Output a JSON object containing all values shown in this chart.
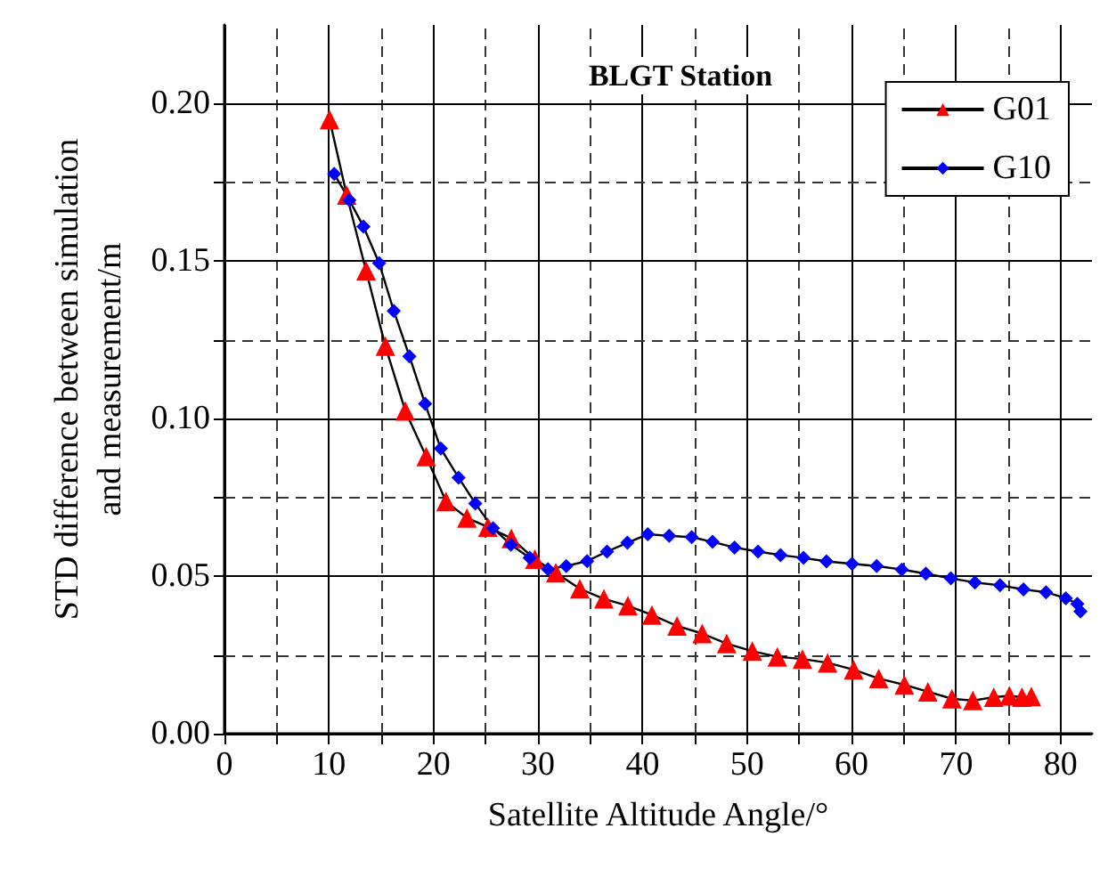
{
  "chart_data": {
    "type": "line",
    "title": "BLGT Station",
    "xlabel": "Satellite Altitude Angle/°",
    "ylabel": "STD difference between simulation\nand measurement/m",
    "xlim": [
      0,
      83
    ],
    "xticks": [
      0,
      {
        "value": 5,
        "label": null
      },
      10,
      {
        "value": 15,
        "label": null
      },
      20,
      {
        "value": 25,
        "label": null
      },
      30,
      {
        "value": 35,
        "label": null
      },
      40,
      {
        "value": 45,
        "label": null
      },
      50,
      {
        "value": 55,
        "label": null
      },
      60,
      {
        "value": 65,
        "label": null
      },
      70,
      {
        "value": 75,
        "label": null
      },
      80
    ],
    "ylim": [
      0,
      0.225
    ],
    "yticks": [
      {
        "value": 0,
        "label": "0.00"
      },
      {
        "value": 0.025,
        "label": null
      },
      0.05,
      {
        "value": 0.075,
        "label": null
      },
      {
        "value": 0.1,
        "label": "0.10"
      },
      {
        "value": 0.125,
        "label": null
      },
      0.15,
      {
        "value": 0.175,
        "label": null
      },
      {
        "value": 0.2,
        "label": "0.20"
      }
    ],
    "grid": true,
    "legend": "top right",
    "line_style": "solid",
    "series": [
      {
        "name": "G01",
        "color": "#ff0000",
        "marker": "triangle",
        "x": [
          10.05,
          11.7,
          13.55,
          15.4,
          17.3,
          19.3,
          21.2,
          23.2,
          25.2,
          27.45,
          29.7,
          31.7,
          34,
          36.3,
          38.6,
          40.9,
          43.3,
          45.7,
          48.05,
          50.5,
          52.9,
          55.3,
          57.7,
          60.2,
          62.6,
          65.05,
          67.3,
          69.6,
          71.6,
          73.6,
          75.1,
          76.3,
          77.2
        ],
        "values": [
          0.195,
          0.171,
          0.147,
          0.123,
          0.1025,
          0.088,
          0.0737,
          0.0685,
          0.0656,
          0.062,
          0.0554,
          0.0511,
          0.046,
          0.0428,
          0.0406,
          0.0377,
          0.0342,
          0.0318,
          0.0286,
          0.0262,
          0.0244,
          0.0237,
          0.0225,
          0.0203,
          0.0175,
          0.0155,
          0.0133,
          0.0111,
          0.0105,
          0.0116,
          0.012,
          0.0116,
          0.0118
        ]
      },
      {
        "name": "G10",
        "color": "#0000ff",
        "marker": "diamond",
        "x": [
          10.5,
          11.95,
          13.3,
          14.8,
          16.2,
          17.7,
          19.2,
          20.7,
          22.4,
          24,
          25.7,
          27.4,
          29.2,
          30.95,
          32.7,
          34.7,
          36.6,
          38.55,
          40.5,
          42.55,
          44.7,
          46.7,
          48.8,
          51.05,
          53.2,
          55.4,
          57.6,
          60.05,
          62.4,
          64.8,
          67.1,
          69.5,
          71.8,
          74.2,
          76.45,
          78.6,
          80.5,
          81.6,
          81.9
        ],
        "values": [
          0.1777,
          0.1694,
          0.161,
          0.1494,
          0.1342,
          0.1198,
          0.1047,
          0.0905,
          0.0813,
          0.0731,
          0.0652,
          0.06,
          0.0558,
          0.0522,
          0.0532,
          0.0548,
          0.0578,
          0.0606,
          0.0633,
          0.0628,
          0.0624,
          0.0609,
          0.0591,
          0.0578,
          0.0567,
          0.0558,
          0.0547,
          0.0539,
          0.0532,
          0.0521,
          0.0508,
          0.0493,
          0.048,
          0.0471,
          0.0458,
          0.0449,
          0.043,
          0.0412,
          0.0388
        ]
      }
    ]
  }
}
